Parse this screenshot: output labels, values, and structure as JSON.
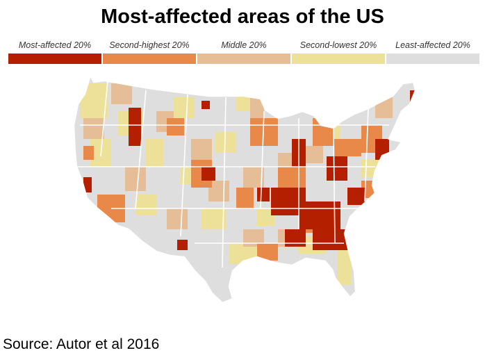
{
  "title": "Most-affected areas of the US",
  "legend": {
    "items": [
      {
        "label": "Most-affected 20%",
        "color": "#b41f00"
      },
      {
        "label": "Second-highest 20%",
        "color": "#e8894a"
      },
      {
        "label": "Middle 20%",
        "color": "#e5bd97"
      },
      {
        "label": "Second-lowest 20%",
        "color": "#ede19a"
      },
      {
        "label": "Least-affected 20%",
        "color": "#dedede"
      }
    ]
  },
  "colors": {
    "background": "#ffffff",
    "state_border": "#ffffff",
    "base_land": "#dedede"
  },
  "source": "Source: Autor et al 2016"
}
